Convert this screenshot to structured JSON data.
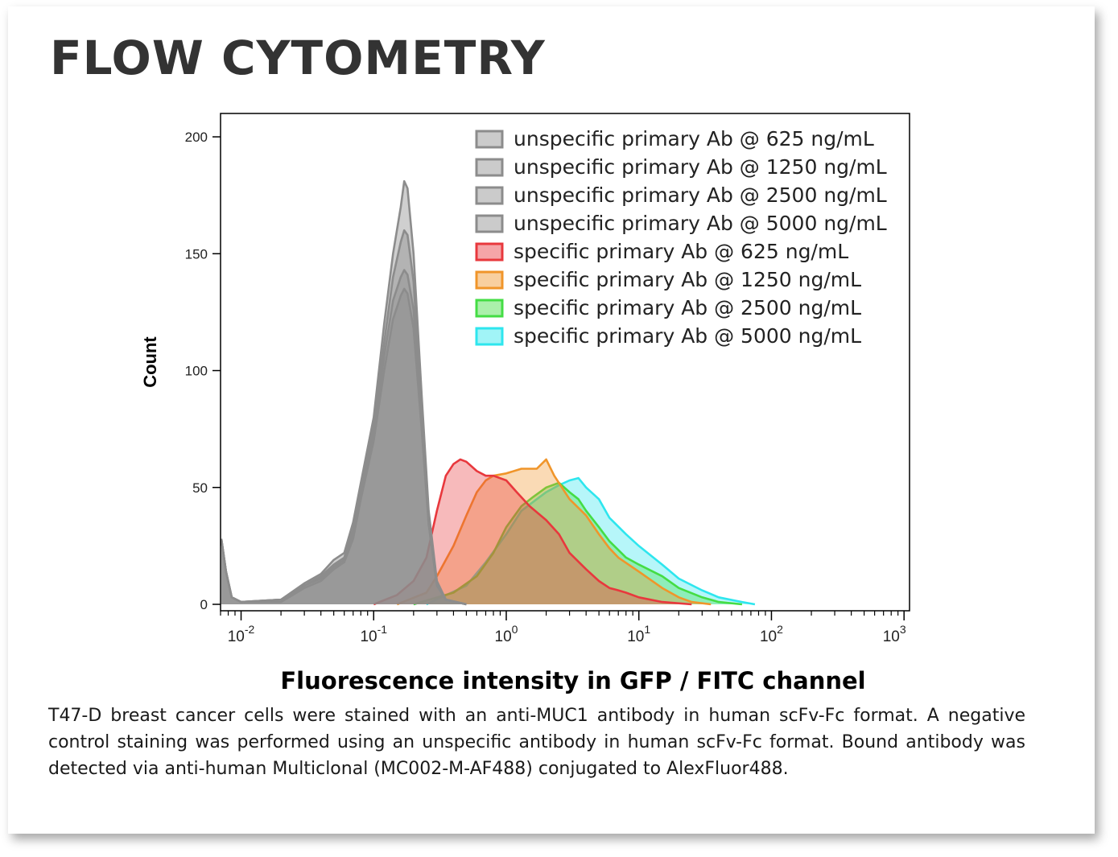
{
  "page": {
    "title": "FLOW CYTOMETRY",
    "caption": "T47-D breast cancer cells were stained with an anti-MUC1 antibody in human scFv-Fc format. A negative control staining was performed using an unspecific antibody in human scFv-Fc format. Bound antibody was detected via anti-human Multiclonal (MC002-M-AF488) conjugated to AlexFluor488."
  },
  "chart_data": {
    "type": "area",
    "xlabel": "Fluorescence intensity in GFP / FITC channel",
    "ylabel": "Count",
    "x_scale": "log",
    "xlim": [
      0.007,
      1100
    ],
    "ylim": [
      0,
      210
    ],
    "x_ticks": [
      {
        "base": "10",
        "exp": "-2",
        "value": 0.01
      },
      {
        "base": "10",
        "exp": "-1",
        "value": 0.1
      },
      {
        "base": "10",
        "exp": "0",
        "value": 1
      },
      {
        "base": "10",
        "exp": "1",
        "value": 10
      },
      {
        "base": "10",
        "exp": "2",
        "value": 100
      },
      {
        "base": "10",
        "exp": "3",
        "value": 1000
      }
    ],
    "y_ticks": [
      0,
      50,
      100,
      150,
      200
    ],
    "legend_position": "top-right",
    "grid": false,
    "series": [
      {
        "name": "unspecific primary Ab @ 625 ng/mL",
        "color": "#8c8c8c",
        "points": [
          [
            0.0071,
            28
          ],
          [
            0.0077,
            14
          ],
          [
            0.0085,
            3
          ],
          [
            0.01,
            1
          ],
          [
            0.02,
            2
          ],
          [
            0.03,
            9
          ],
          [
            0.04,
            13
          ],
          [
            0.05,
            19
          ],
          [
            0.06,
            22
          ],
          [
            0.07,
            35
          ],
          [
            0.08,
            52
          ],
          [
            0.1,
            80
          ],
          [
            0.12,
            120
          ],
          [
            0.14,
            150
          ],
          [
            0.16,
            170
          ],
          [
            0.17,
            181
          ],
          [
            0.18,
            178
          ],
          [
            0.2,
            150
          ],
          [
            0.23,
            90
          ],
          [
            0.26,
            40
          ],
          [
            0.3,
            10
          ],
          [
            0.35,
            2
          ],
          [
            0.5,
            0
          ]
        ]
      },
      {
        "name": "unspecific primary Ab @ 1250 ng/mL",
        "color": "#8c8c8c",
        "points": [
          [
            0.0071,
            28
          ],
          [
            0.0077,
            14
          ],
          [
            0.0085,
            3
          ],
          [
            0.01,
            1
          ],
          [
            0.02,
            2
          ],
          [
            0.03,
            8
          ],
          [
            0.04,
            12
          ],
          [
            0.05,
            17
          ],
          [
            0.06,
            20
          ],
          [
            0.07,
            32
          ],
          [
            0.08,
            50
          ],
          [
            0.1,
            77
          ],
          [
            0.12,
            112
          ],
          [
            0.14,
            140
          ],
          [
            0.16,
            155
          ],
          [
            0.17,
            160
          ],
          [
            0.18,
            158
          ],
          [
            0.2,
            138
          ],
          [
            0.23,
            85
          ],
          [
            0.26,
            38
          ],
          [
            0.3,
            9
          ],
          [
            0.35,
            2
          ],
          [
            0.5,
            0
          ]
        ]
      },
      {
        "name": "unspecific primary Ab @ 2500 ng/mL",
        "color": "#8c8c8c",
        "points": [
          [
            0.0071,
            28
          ],
          [
            0.0077,
            14
          ],
          [
            0.0085,
            3
          ],
          [
            0.01,
            1
          ],
          [
            0.02,
            2
          ],
          [
            0.03,
            8
          ],
          [
            0.04,
            11
          ],
          [
            0.05,
            16
          ],
          [
            0.06,
            19
          ],
          [
            0.07,
            30
          ],
          [
            0.08,
            48
          ],
          [
            0.1,
            74
          ],
          [
            0.12,
            106
          ],
          [
            0.14,
            130
          ],
          [
            0.16,
            140
          ],
          [
            0.17,
            143
          ],
          [
            0.18,
            141
          ],
          [
            0.2,
            126
          ],
          [
            0.23,
            80
          ],
          [
            0.26,
            36
          ],
          [
            0.3,
            9
          ],
          [
            0.35,
            2
          ],
          [
            0.5,
            0
          ]
        ]
      },
      {
        "name": "unspecific primary Ab @ 5000 ng/mL",
        "color": "#8c8c8c",
        "points": [
          [
            0.0071,
            28
          ],
          [
            0.0077,
            14
          ],
          [
            0.0085,
            3
          ],
          [
            0.01,
            1
          ],
          [
            0.02,
            1
          ],
          [
            0.03,
            7
          ],
          [
            0.04,
            10
          ],
          [
            0.05,
            15
          ],
          [
            0.06,
            18
          ],
          [
            0.07,
            28
          ],
          [
            0.08,
            45
          ],
          [
            0.1,
            70
          ],
          [
            0.12,
            100
          ],
          [
            0.14,
            122
          ],
          [
            0.16,
            132
          ],
          [
            0.17,
            135
          ],
          [
            0.18,
            133
          ],
          [
            0.2,
            118
          ],
          [
            0.23,
            75
          ],
          [
            0.26,
            34
          ],
          [
            0.3,
            8
          ],
          [
            0.35,
            2
          ],
          [
            0.5,
            0
          ]
        ]
      },
      {
        "name": "specific primary Ab @ 625 ng/mL",
        "color": "#e8383d",
        "points": [
          [
            0.1,
            0
          ],
          [
            0.15,
            4
          ],
          [
            0.2,
            10
          ],
          [
            0.25,
            20
          ],
          [
            0.3,
            40
          ],
          [
            0.35,
            55
          ],
          [
            0.4,
            60
          ],
          [
            0.45,
            62
          ],
          [
            0.5,
            61
          ],
          [
            0.6,
            57
          ],
          [
            0.7,
            55
          ],
          [
            0.8,
            55
          ],
          [
            1,
            53
          ],
          [
            1.2,
            48
          ],
          [
            1.5,
            42
          ],
          [
            2,
            36
          ],
          [
            2.5,
            30
          ],
          [
            3,
            22
          ],
          [
            4,
            15
          ],
          [
            5,
            10
          ],
          [
            6,
            7
          ],
          [
            7,
            6
          ],
          [
            8,
            5
          ],
          [
            10,
            3
          ],
          [
            15,
            1
          ],
          [
            25,
            0
          ]
        ]
      },
      {
        "name": "specific primary Ab @ 1250 ng/mL",
        "color": "#f0952a",
        "points": [
          [
            0.15,
            0
          ],
          [
            0.25,
            5
          ],
          [
            0.3,
            12
          ],
          [
            0.4,
            25
          ],
          [
            0.5,
            38
          ],
          [
            0.6,
            48
          ],
          [
            0.7,
            53
          ],
          [
            0.8,
            55
          ],
          [
            1,
            56
          ],
          [
            1.3,
            58
          ],
          [
            1.7,
            58
          ],
          [
            2,
            62
          ],
          [
            2.3,
            55
          ],
          [
            3,
            45
          ],
          [
            4,
            38
          ],
          [
            5,
            30
          ],
          [
            6,
            24
          ],
          [
            7,
            20
          ],
          [
            10,
            14
          ],
          [
            15,
            7
          ],
          [
            20,
            3
          ],
          [
            25,
            1
          ],
          [
            35,
            0
          ]
        ]
      },
      {
        "name": "specific primary Ab @ 2500 ng/mL",
        "color": "#44dd44",
        "points": [
          [
            0.2,
            0
          ],
          [
            0.4,
            5
          ],
          [
            0.6,
            12
          ],
          [
            0.8,
            22
          ],
          [
            1,
            33
          ],
          [
            1.3,
            42
          ],
          [
            1.6,
            46
          ],
          [
            2,
            50
          ],
          [
            2.5,
            52
          ],
          [
            3,
            48
          ],
          [
            3.5,
            45
          ],
          [
            4,
            40
          ],
          [
            5,
            33
          ],
          [
            6,
            27
          ],
          [
            8,
            20
          ],
          [
            10,
            17
          ],
          [
            15,
            12
          ],
          [
            20,
            7
          ],
          [
            30,
            3
          ],
          [
            40,
            1
          ],
          [
            60,
            0
          ]
        ]
      },
      {
        "name": "specific primary Ab @ 5000 ng/mL",
        "color": "#2ee6ee",
        "points": [
          [
            0.25,
            0
          ],
          [
            0.5,
            8
          ],
          [
            0.7,
            18
          ],
          [
            1,
            30
          ],
          [
            1.3,
            40
          ],
          [
            1.7,
            45
          ],
          [
            2,
            48
          ],
          [
            2.5,
            51
          ],
          [
            3,
            53
          ],
          [
            3.5,
            54
          ],
          [
            4,
            50
          ],
          [
            5,
            45
          ],
          [
            6,
            37
          ],
          [
            8,
            30
          ],
          [
            10,
            25
          ],
          [
            15,
            17
          ],
          [
            20,
            11
          ],
          [
            30,
            6
          ],
          [
            40,
            3
          ],
          [
            60,
            1
          ],
          [
            75,
            0
          ]
        ]
      }
    ]
  }
}
